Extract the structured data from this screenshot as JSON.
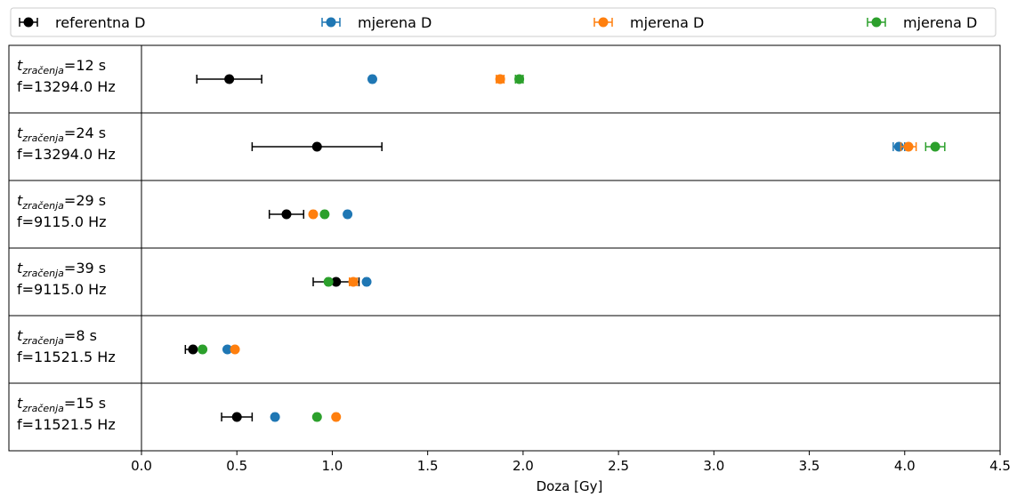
{
  "chart_data": {
    "type": "scatter",
    "xlabel": "Doza [Gy]",
    "xlim": [
      0,
      4.5
    ],
    "xticks": [
      0.0,
      0.5,
      1.0,
      1.5,
      2.0,
      2.5,
      3.0,
      3.5,
      4.0,
      4.5
    ],
    "xtick_labels": [
      "0.0",
      "0.5",
      "1.0",
      "1.5",
      "2.0",
      "2.5",
      "3.0",
      "3.5",
      "4.0",
      "4.5"
    ],
    "grid": false,
    "legend_position": "top",
    "categories": [
      {
        "t_prefix": "t",
        "t_sub": "zračenja",
        "t_value": "=12 s",
        "f_label": "f=13294.0 Hz"
      },
      {
        "t_prefix": "t",
        "t_sub": "zračenja",
        "t_value": "=24 s",
        "f_label": "f=13294.0 Hz"
      },
      {
        "t_prefix": "t",
        "t_sub": "zračenja",
        "t_value": "=29 s",
        "f_label": "f=9115.0 Hz"
      },
      {
        "t_prefix": "t",
        "t_sub": "zračenja",
        "t_value": "=39 s",
        "f_label": "f=9115.0 Hz"
      },
      {
        "t_prefix": "t",
        "t_sub": "zračenja",
        "t_value": "=8 s",
        "f_label": "f=11521.5 Hz"
      },
      {
        "t_prefix": "t",
        "t_sub": "zračenja",
        "t_value": "=15 s",
        "f_label": "f=11521.5 Hz"
      }
    ],
    "series": [
      {
        "name": "referentna D",
        "color": "#000000",
        "values": [
          0.46,
          0.92,
          0.76,
          1.02,
          0.27,
          0.5
        ],
        "errors": [
          0.17,
          0.34,
          0.09,
          0.12,
          0.04,
          0.08
        ]
      },
      {
        "name": "mjerena D",
        "color": "#1f77b4",
        "values": [
          1.21,
          3.97,
          1.08,
          1.18,
          0.45,
          0.7
        ],
        "errors": [
          0.01,
          0.03,
          0.01,
          0.01,
          0.005,
          0.01
        ]
      },
      {
        "name": "mjerena D",
        "color": "#ff7f0e",
        "values": [
          1.88,
          4.02,
          0.9,
          1.11,
          0.49,
          1.02
        ],
        "errors": [
          0.02,
          0.04,
          0.01,
          0.02,
          0.005,
          0.01
        ]
      },
      {
        "name": "mjerena D",
        "color": "#2ca02c",
        "values": [
          1.98,
          4.16,
          0.96,
          0.98,
          0.32,
          0.92
        ],
        "errors": [
          0.02,
          0.05,
          0.01,
          0.01,
          0.005,
          0.01
        ]
      }
    ]
  }
}
